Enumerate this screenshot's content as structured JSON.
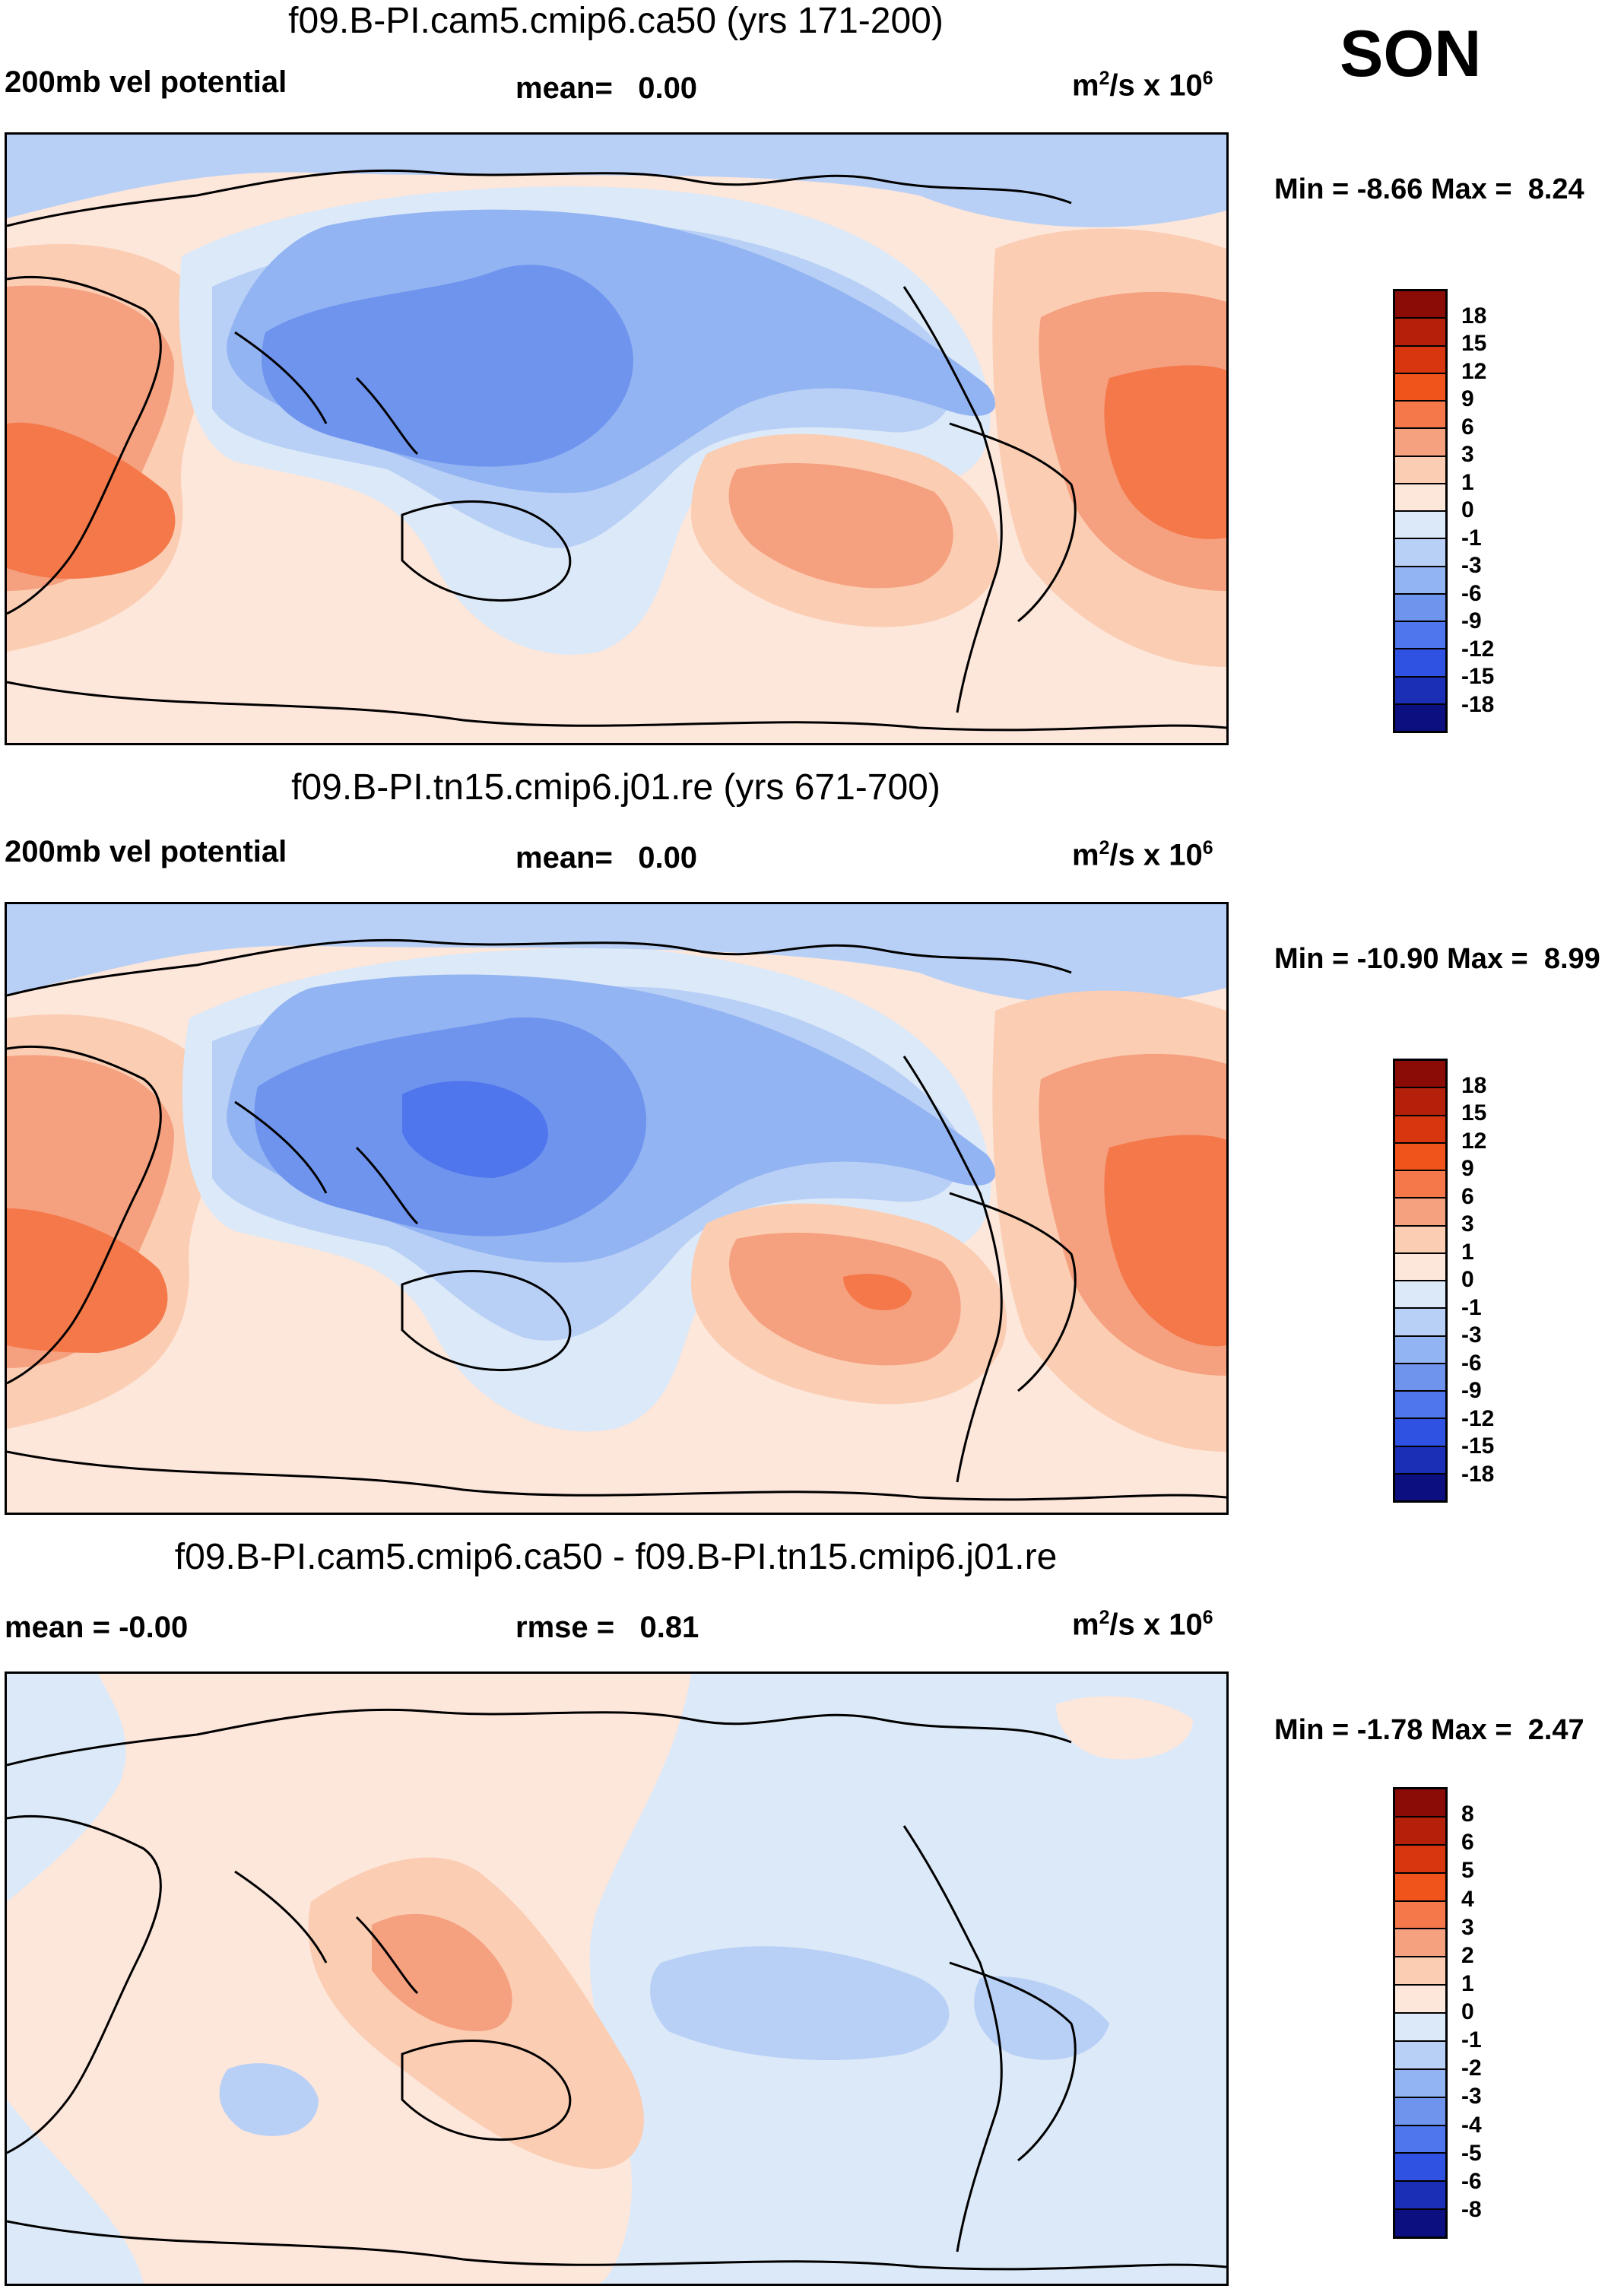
{
  "season": "SON",
  "panels": [
    {
      "title": "f09.B-PI.cam5.cmip6.ca50 (yrs 171-200)",
      "left_label": "200mb vel potential",
      "mid_key": "mean=",
      "mid_value": "0.00",
      "units_base": "m",
      "units_sup1": "2",
      "units_mid": "/s x 10",
      "units_sup2": "6",
      "min_key": "Min =",
      "min_value": "-8.66",
      "max_key": "Max =",
      "max_value": "8.24",
      "colorbar": {
        "levels": [
          "18",
          "15",
          "12",
          "9",
          "6",
          "3",
          "1",
          "0",
          "-1",
          "-3",
          "-6",
          "-9",
          "-12",
          "-15",
          "-18"
        ],
        "colors": [
          "#8b0c07",
          "#b5200b",
          "#d8360f",
          "#f0541b",
          "#f4784a",
          "#f5a07f",
          "#fbcdb3",
          "#fde6da",
          "#dce9f8",
          "#b9d0f6",
          "#93b4f2",
          "#6f94ee",
          "#4f76ec",
          "#2f52e2",
          "#1a2fb6",
          "#0b0f80"
        ]
      }
    },
    {
      "title": "f09.B-PI.tn15.cmip6.j01.re (yrs 671-700)",
      "left_label": "200mb vel potential",
      "mid_key": "mean=",
      "mid_value": "0.00",
      "units_base": "m",
      "units_sup1": "2",
      "units_mid": "/s x 10",
      "units_sup2": "6",
      "min_key": "Min =",
      "min_value": "-10.90",
      "max_key": "Max =",
      "max_value": "8.99",
      "colorbar": {
        "levels": [
          "18",
          "15",
          "12",
          "9",
          "6",
          "3",
          "1",
          "0",
          "-1",
          "-3",
          "-6",
          "-9",
          "-12",
          "-15",
          "-18"
        ],
        "colors": [
          "#8b0c07",
          "#b5200b",
          "#d8360f",
          "#f0541b",
          "#f4784a",
          "#f5a07f",
          "#fbcdb3",
          "#fde6da",
          "#dce9f8",
          "#b9d0f6",
          "#93b4f2",
          "#6f94ee",
          "#4f76ec",
          "#2f52e2",
          "#1a2fb6",
          "#0b0f80"
        ]
      }
    },
    {
      "title": "f09.B-PI.cam5.cmip6.ca50 - f09.B-PI.tn15.cmip6.j01.re",
      "left_label": "mean =  -0.00",
      "mid_key": "rmse =",
      "mid_value": "0.81",
      "units_base": "m",
      "units_sup1": "2",
      "units_mid": "/s x 10",
      "units_sup2": "6",
      "min_key": "Min =",
      "min_value": "-1.78",
      "max_key": "Max =",
      "max_value": "2.47",
      "colorbar": {
        "levels": [
          "8",
          "6",
          "5",
          "4",
          "3",
          "2",
          "1",
          "0",
          "-1",
          "-2",
          "-3",
          "-4",
          "-5",
          "-6",
          "-8"
        ],
        "colors": [
          "#8b0c07",
          "#b5200b",
          "#d8360f",
          "#f0541b",
          "#f4784a",
          "#f5a07f",
          "#fbcdb3",
          "#fde6da",
          "#dce9f8",
          "#b9d0f6",
          "#93b4f2",
          "#6f94ee",
          "#4f76ec",
          "#2f52e2",
          "#1a2fb6",
          "#0b0f80"
        ]
      }
    }
  ]
}
